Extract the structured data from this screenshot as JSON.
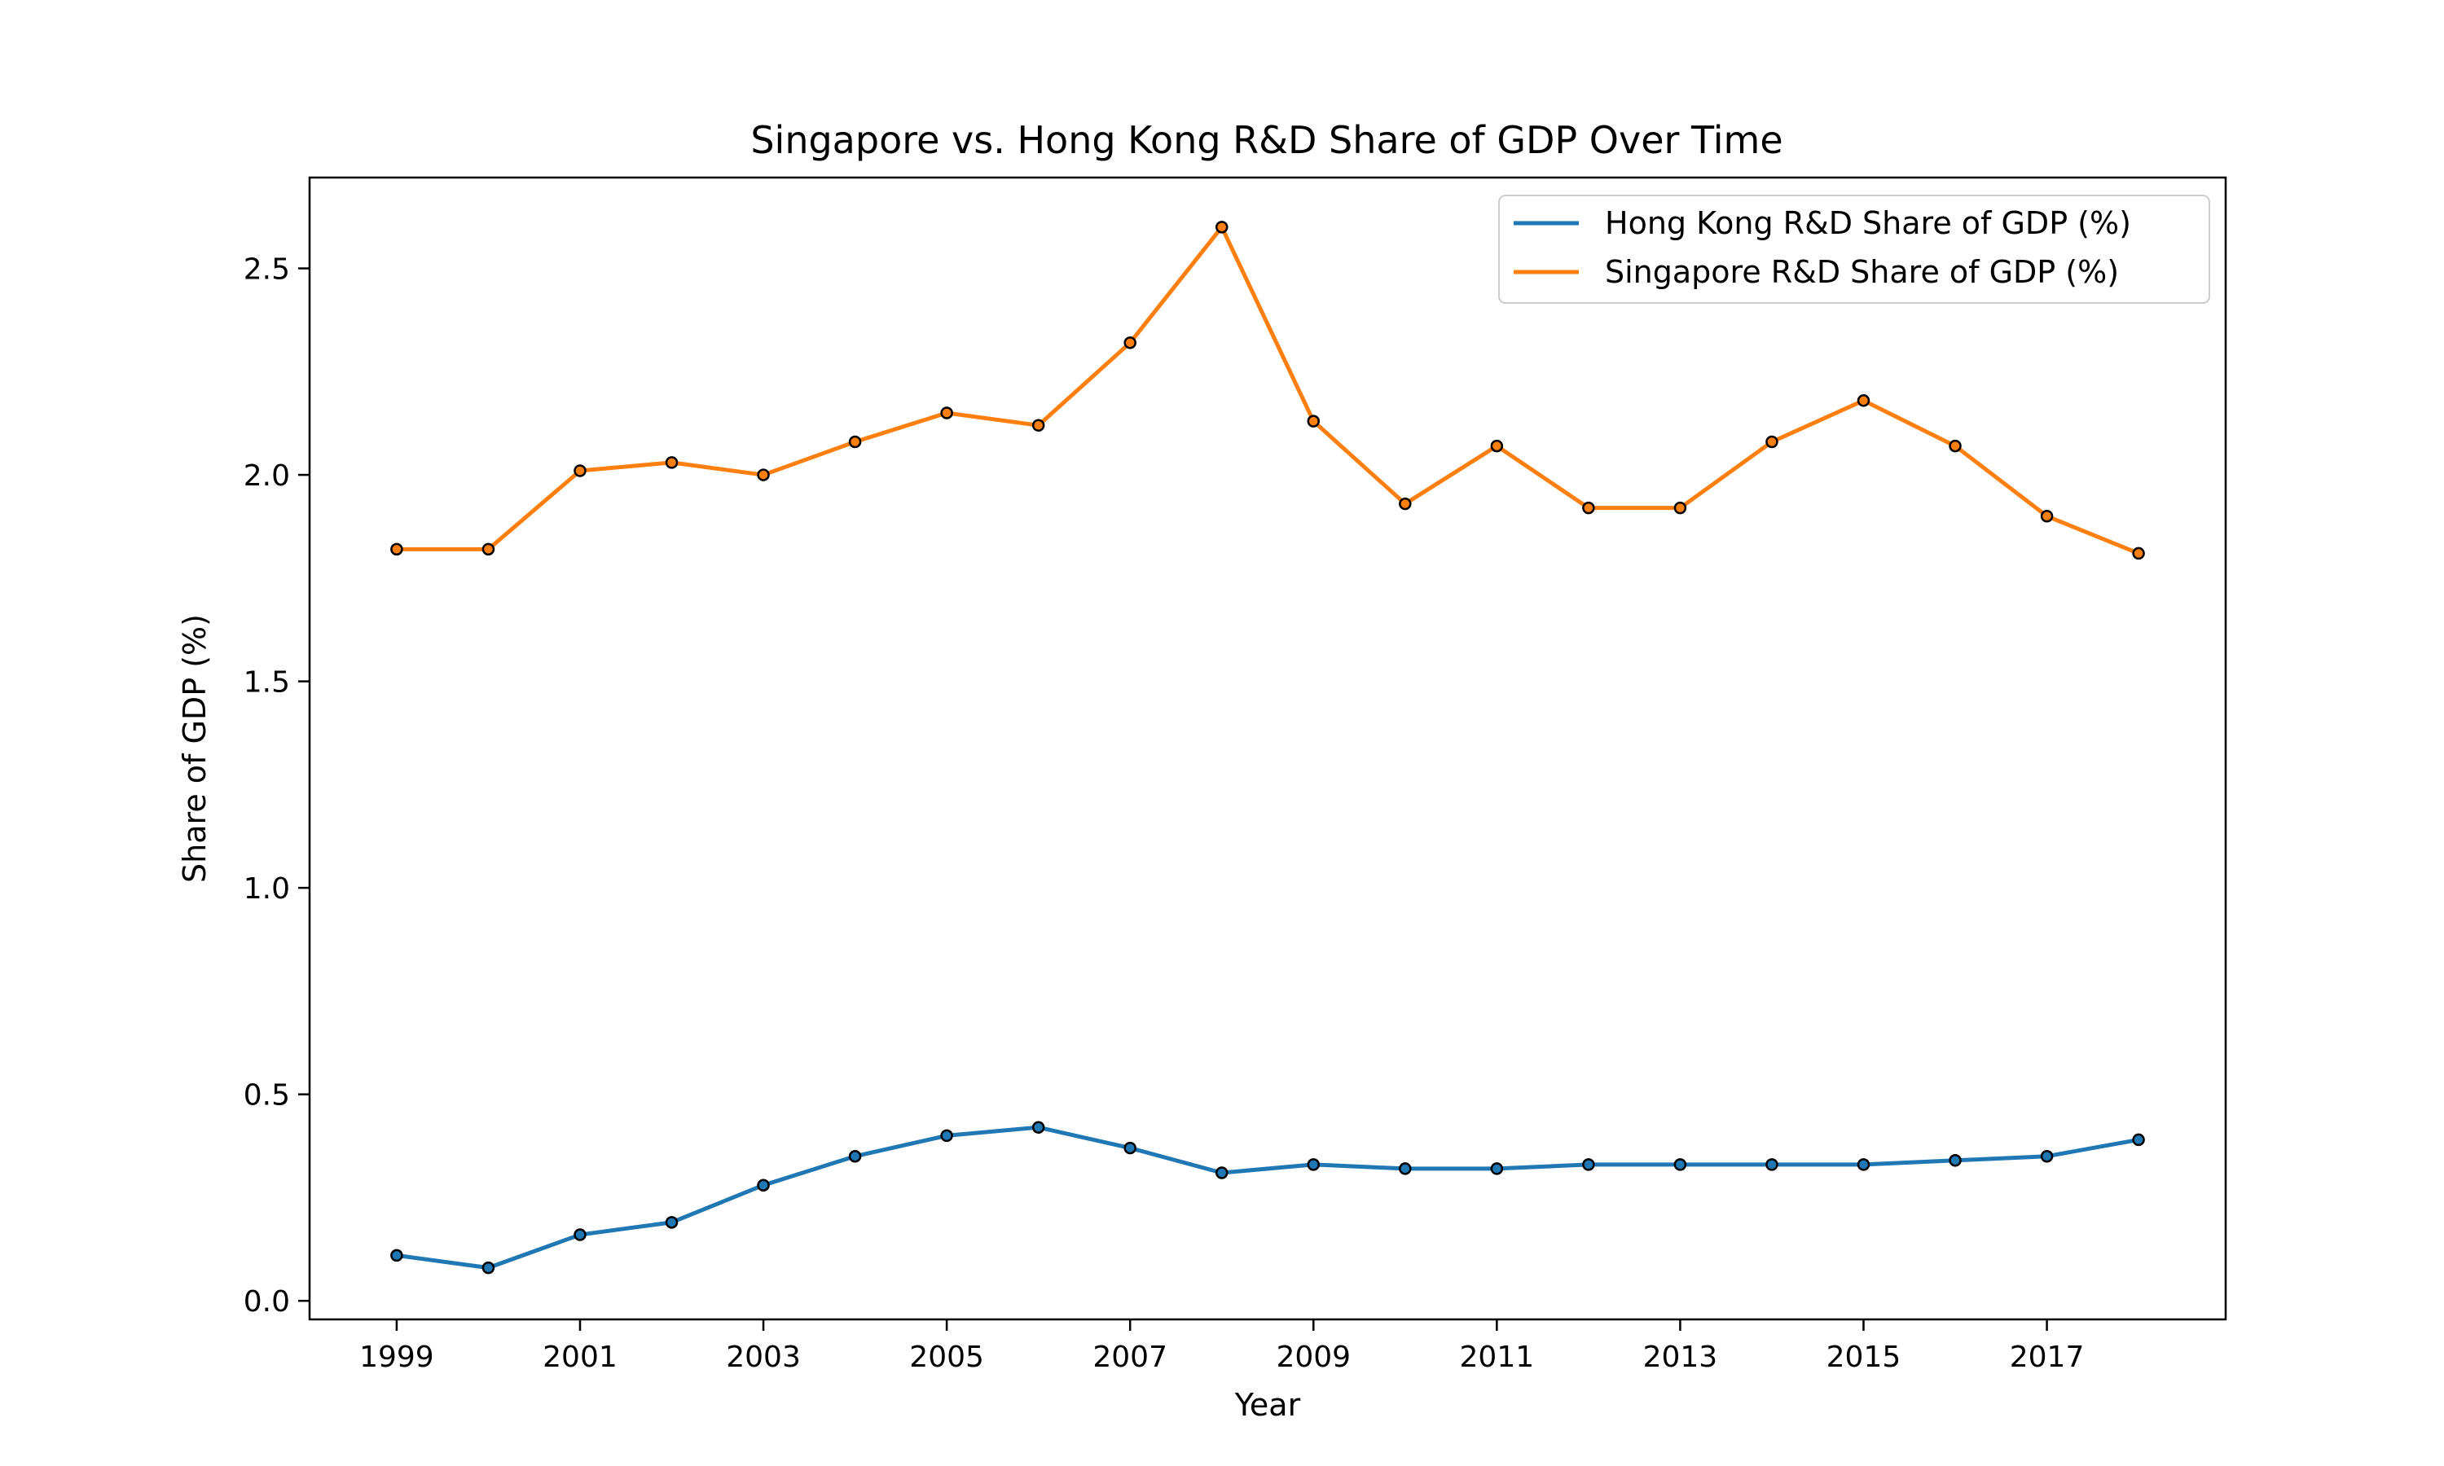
{
  "chart_data": {
    "type": "line",
    "title": "Singapore vs. Hong Kong R&D Share of GDP Over Time",
    "xlabel": "Year",
    "ylabel": "Share of GDP (%)",
    "x": [
      1999,
      2000,
      2001,
      2002,
      2003,
      2004,
      2005,
      2006,
      2007,
      2008,
      2009,
      2010,
      2011,
      2012,
      2013,
      2014,
      2015,
      2016,
      2017,
      2018
    ],
    "xticks": [
      1999,
      2001,
      2003,
      2005,
      2007,
      2009,
      2011,
      2013,
      2015,
      2017
    ],
    "xlim": [
      1998.05,
      2018.95
    ],
    "yticks": [
      0.0,
      0.5,
      1.0,
      1.5,
      2.0,
      2.5
    ],
    "ytick_labels": [
      "0.0",
      "0.5",
      "1.0",
      "1.5",
      "2.0",
      "2.5"
    ],
    "ylim": [
      -0.045,
      2.72
    ],
    "grid": false,
    "legend_position": "upper-right",
    "series": [
      {
        "name": "Hong Kong R&D Share of GDP (%)",
        "color": "#1f77b4",
        "values": [
          0.11,
          0.08,
          0.16,
          0.19,
          0.28,
          0.35,
          0.4,
          0.42,
          0.37,
          0.31,
          0.33,
          0.32,
          0.32,
          0.33,
          0.33,
          0.33,
          0.33,
          0.34,
          0.35,
          0.39
        ]
      },
      {
        "name": "Singapore R&D Share of GDP (%)",
        "color": "#ff7f0e",
        "values": [
          1.82,
          1.82,
          2.01,
          2.03,
          2.0,
          2.08,
          2.15,
          2.12,
          2.32,
          2.6,
          2.13,
          1.93,
          2.07,
          1.92,
          1.92,
          2.08,
          2.18,
          2.07,
          1.9,
          1.81
        ]
      }
    ]
  }
}
